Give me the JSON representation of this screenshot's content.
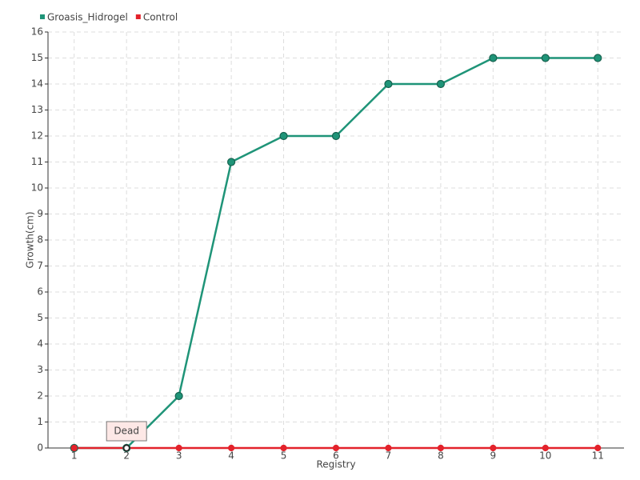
{
  "chart_data": {
    "type": "line",
    "x": [
      1,
      2,
      3,
      4,
      5,
      6,
      7,
      8,
      9,
      10,
      11
    ],
    "series": [
      {
        "name": "Groasis_Hidrogel",
        "color": "#1f9478",
        "values": [
          0,
          0,
          2,
          11,
          12,
          12,
          14,
          14,
          15,
          15,
          15
        ]
      },
      {
        "name": "Control",
        "color": "#e3222b",
        "values": [
          0,
          0,
          0,
          0,
          0,
          0,
          0,
          0,
          0,
          0,
          0
        ]
      }
    ],
    "xlabel": "Registry",
    "ylabel": "Growth(cm)",
    "xlim": [
      0.5,
      11.5
    ],
    "xticks": [
      1,
      2,
      3,
      4,
      5,
      6,
      7,
      8,
      9,
      10,
      11
    ],
    "ylim": [
      0,
      16
    ],
    "yticks": [
      0,
      1,
      2,
      3,
      4,
      5,
      6,
      7,
      8,
      9,
      10,
      11,
      12,
      13,
      14,
      15,
      16
    ],
    "grid": true,
    "legend": "top-left",
    "annotation": {
      "text": "Dead",
      "x": 2,
      "y": 0
    }
  }
}
